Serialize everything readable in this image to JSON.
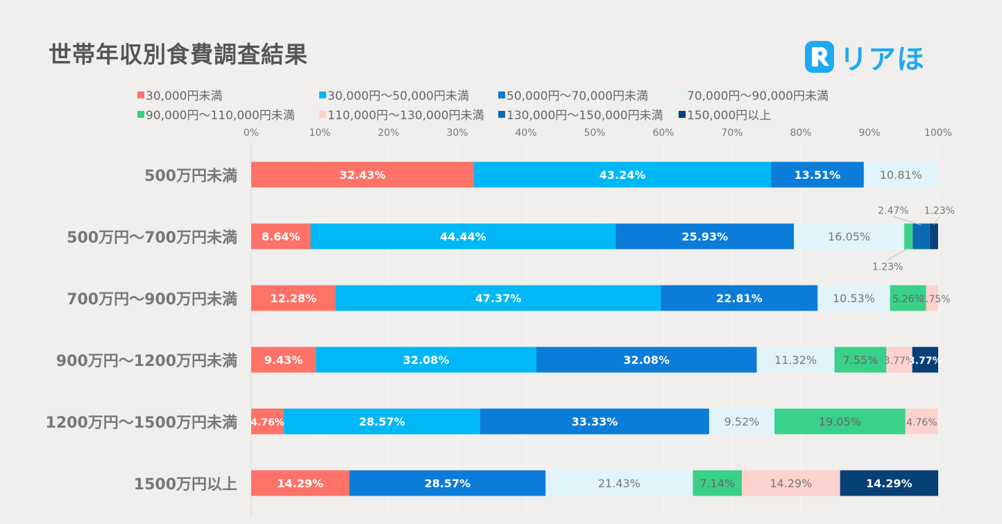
{
  "title": "世帯年収別食費調査結果",
  "brand": {
    "logo_text": "リアほ",
    "logo_icon": "r-icon",
    "color": "#1eaaf1"
  },
  "chart_data": {
    "type": "bar",
    "orientation": "horizontal",
    "stacked": true,
    "title": "世帯年収別食費調査結果",
    "xlim": [
      0,
      100
    ],
    "x_ticks": [
      "0%",
      "10%",
      "20%",
      "30%",
      "40%",
      "50%",
      "60%",
      "70%",
      "80%",
      "90%",
      "100%"
    ],
    "categories": [
      "500万円未満",
      "500万円～700万円未満",
      "700万円～900万円未満",
      "900万円～1200万円未満",
      "1200万円～1500万円未満",
      "1500万円以上"
    ],
    "series": [
      {
        "name": "30,000円未満",
        "color": "#fe7268",
        "label_color": "#ffffff",
        "values": [
          32.43,
          8.64,
          12.28,
          9.43,
          4.76,
          14.29
        ],
        "labels": [
          "32.43%",
          "8.64%",
          "12.28%",
          "9.43%",
          "4.76%",
          "14.29%"
        ]
      },
      {
        "name": "30,000円～50,000円未満",
        "color": "#00b8f5",
        "label_color": "#ffffff",
        "values": [
          43.24,
          44.44,
          47.37,
          32.08,
          28.57,
          0
        ],
        "labels": [
          "43.24%",
          "44.44%",
          "47.37%",
          "32.08%",
          "28.57%",
          ""
        ]
      },
      {
        "name": "50,000円～70,000円未満",
        "color": "#0b7cd8",
        "label_color": "#ffffff",
        "values": [
          13.51,
          25.93,
          22.81,
          32.08,
          33.33,
          28.57
        ],
        "labels": [
          "13.51%",
          "25.93%",
          "22.81%",
          "32.08%",
          "33.33%",
          "28.57%"
        ]
      },
      {
        "name": "70,000円～90,000円未満",
        "color": "#e2f4fb",
        "label_color": "#777777",
        "values": [
          10.81,
          16.05,
          10.53,
          11.32,
          9.52,
          21.43
        ],
        "labels": [
          "10.81%",
          "16.05%",
          "10.53%",
          "11.32%",
          "9.52%",
          "21.43%"
        ]
      },
      {
        "name": "90,000円～110,000円未満",
        "color": "#39d188",
        "label_color": "#666666",
        "values": [
          0,
          1.23,
          5.26,
          7.55,
          19.05,
          7.14
        ],
        "labels": [
          "",
          "1.23%",
          "5.26%",
          "7.55%",
          "19.05%",
          "7.14%"
        ]
      },
      {
        "name": "110,000円～130,000円未満",
        "color": "#fdd2ce",
        "label_color": "#777777",
        "values": [
          0,
          0,
          1.75,
          3.77,
          4.76,
          14.29
        ],
        "labels": [
          "",
          "",
          "1.75%",
          "3.77%",
          "4.76%",
          "14.29%"
        ]
      },
      {
        "name": "130,000円～150,000円未満",
        "color": "#0a6bb1",
        "label_color": "#ffffff",
        "values": [
          0,
          2.47,
          0,
          0,
          0,
          0
        ],
        "labels": [
          "",
          "2.47%",
          "",
          "",
          "",
          ""
        ]
      },
      {
        "name": "150,000円以上",
        "color": "#073f77",
        "label_color": "#ffffff",
        "values": [
          0,
          1.23,
          0,
          3.77,
          0,
          14.29
        ],
        "labels": [
          "",
          "1.23%",
          "",
          "3.77%",
          "",
          "14.29%"
        ]
      }
    ],
    "legend_position": "top",
    "grid": true
  }
}
